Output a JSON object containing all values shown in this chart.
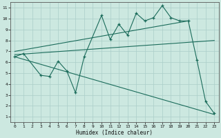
{
  "title": "",
  "xlabel": "Humidex (Indice chaleur)",
  "bg_color": "#cce8e0",
  "grid_color": "#aacec8",
  "line_color": "#1a6b5a",
  "xlim": [
    -0.5,
    23.5
  ],
  "ylim": [
    0.5,
    11.5
  ],
  "xticks": [
    0,
    1,
    2,
    3,
    4,
    5,
    6,
    7,
    8,
    9,
    10,
    11,
    12,
    13,
    14,
    15,
    16,
    17,
    18,
    19,
    20,
    21,
    22,
    23
  ],
  "yticks": [
    1,
    2,
    3,
    4,
    5,
    6,
    7,
    8,
    9,
    10,
    11
  ],
  "main_x": [
    0,
    1,
    3,
    4,
    5,
    6,
    7,
    8,
    10,
    11,
    12,
    13,
    14,
    15,
    16,
    17,
    18,
    19,
    20,
    21,
    22,
    23
  ],
  "main_y": [
    6.5,
    6.8,
    4.8,
    4.7,
    6.1,
    5.2,
    3.2,
    6.5,
    10.3,
    8.1,
    9.5,
    8.5,
    10.5,
    9.8,
    10.1,
    11.2,
    10.1,
    9.8,
    9.8,
    6.2,
    2.4,
    1.3
  ],
  "upper_line_x": [
    0,
    20
  ],
  "upper_line_y": [
    7.0,
    9.8
  ],
  "lower_line_x": [
    0,
    23
  ],
  "lower_line_y": [
    6.5,
    1.2
  ],
  "mid_line_x": [
    0,
    23
  ],
  "mid_line_y": [
    6.7,
    8.0
  ]
}
